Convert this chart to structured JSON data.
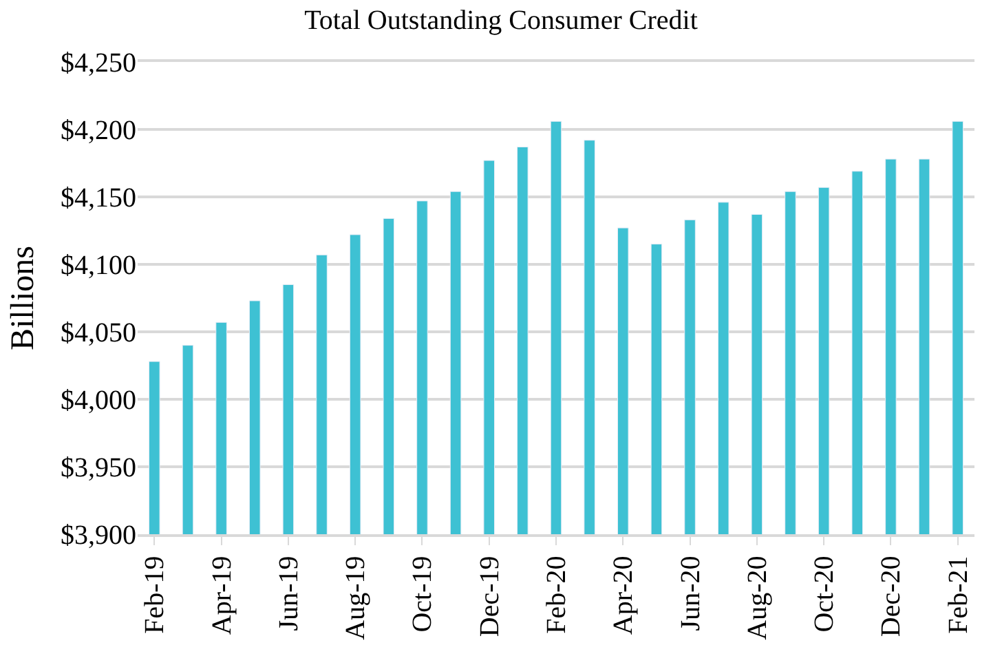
{
  "chart_data": {
    "type": "bar",
    "title": "Total Outstanding Consumer Credit",
    "ylabel": "Billions",
    "categories": [
      "Feb-19",
      null,
      "Apr-19",
      null,
      "Jun-19",
      null,
      "Aug-19",
      null,
      "Oct-19",
      null,
      "Dec-19",
      null,
      "Feb-20",
      null,
      "Apr-20",
      null,
      "Jun-20",
      null,
      "Aug-20",
      null,
      "Oct-20",
      null,
      "Dec-20",
      null,
      "Feb-21"
    ],
    "series": [
      {
        "color": "#3ec1d3",
        "values": [
          4028,
          4040,
          4057,
          4073,
          4085,
          4107,
          4122,
          4134,
          4147,
          4154,
          4177,
          4187,
          4206,
          4192,
          4127,
          4115,
          4133,
          4146,
          4137,
          4154,
          4157,
          4169,
          4178,
          4178,
          4206
        ]
      }
    ],
    "ylim": [
      3900,
      4250
    ],
    "yticks": [
      {
        "value": 3900,
        "label": "$3,900"
      },
      {
        "value": 3950,
        "label": "$3,950"
      },
      {
        "value": 4000,
        "label": "$4,000"
      },
      {
        "value": 4050,
        "label": "$4,050"
      },
      {
        "value": 4100,
        "label": "$4,100"
      },
      {
        "value": 4150,
        "label": "$4,150"
      },
      {
        "value": 4200,
        "label": "$4,200"
      },
      {
        "value": 4250,
        "label": "$4,250"
      }
    ],
    "grid": "y"
  }
}
